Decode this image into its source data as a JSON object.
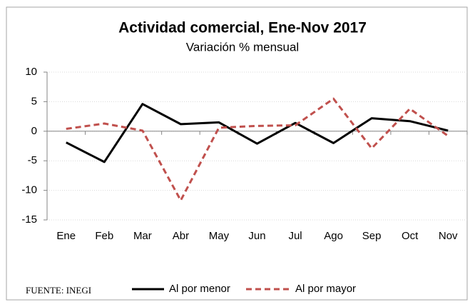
{
  "chart_data": {
    "type": "line",
    "title": "Actividad comercial, Ene-Nov 2017",
    "subtitle": "Variación % mensual",
    "source": "FUENTE: INEGI",
    "categories": [
      "Ene",
      "Feb",
      "Mar",
      "Abr",
      "May",
      "Jun",
      "Jul",
      "Ago",
      "Sep",
      "Oct",
      "Nov"
    ],
    "series": [
      {
        "name": "Al por menor",
        "color": "#000000",
        "dash": false,
        "values": [
          -1.9,
          -5.2,
          4.6,
          1.2,
          1.5,
          -2.1,
          1.4,
          -2.0,
          2.2,
          1.7,
          0.1
        ]
      },
      {
        "name": "Al por mayor",
        "color": "#c0504d",
        "dash": true,
        "values": [
          0.4,
          1.3,
          0.1,
          -11.7,
          0.6,
          0.9,
          1.0,
          5.5,
          -2.9,
          3.8,
          -0.8
        ]
      }
    ],
    "ylim": [
      -15,
      10
    ],
    "yticks": [
      -15,
      -10,
      -5,
      0,
      5,
      10
    ],
    "grid": true,
    "legend": "bottom"
  }
}
